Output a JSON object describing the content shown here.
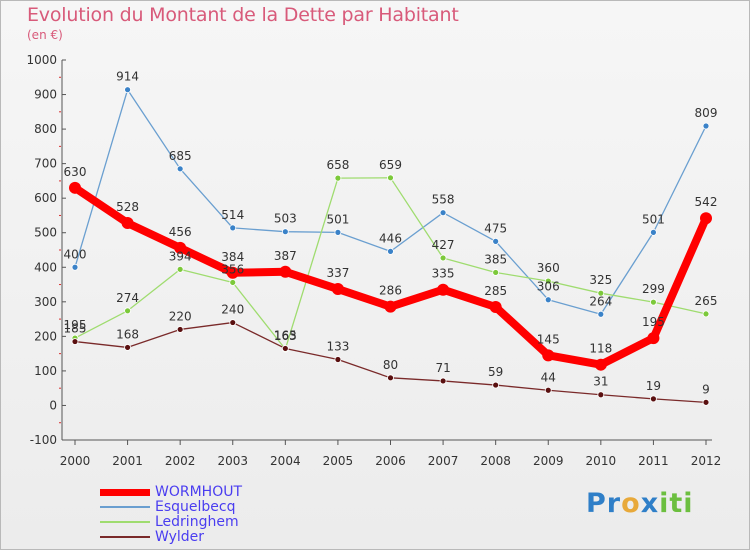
{
  "header": {
    "title": "Evolution du Montant de la Dette par Habitant",
    "subtitle": "(en €)"
  },
  "brand": {
    "text": "Proxiti",
    "letters": [
      {
        "ch": "P",
        "color": "#2f7fc8"
      },
      {
        "ch": "r",
        "color": "#2f7fc8"
      },
      {
        "ch": "o",
        "color": "#e8a93a"
      },
      {
        "ch": "x",
        "color": "#2f7fc8"
      },
      {
        "ch": "i",
        "color": "#6cbf3f"
      },
      {
        "ch": "t",
        "color": "#6cbf3f"
      },
      {
        "ch": "i",
        "color": "#6cbf3f"
      }
    ]
  },
  "chart_data": {
    "type": "line",
    "title": "Evolution du Montant de la Dette par Habitant",
    "subtitle": "(en €)",
    "x": [
      "2000",
      "2001",
      "2002",
      "2003",
      "2004",
      "2005",
      "2006",
      "2007",
      "2008",
      "2009",
      "2010",
      "2011",
      "2012"
    ],
    "yticks": [
      1000,
      900,
      800,
      700,
      600,
      500,
      400,
      300,
      200,
      100,
      0,
      -100
    ],
    "ylim": [
      -100,
      1000
    ],
    "grid": false,
    "legend_position": "bottom-left",
    "series": [
      {
        "name": "WORMHOUT",
        "color": "#ff0000",
        "point_color": "#ff0000",
        "emphasis": true,
        "values": [
          630,
          528,
          456,
          384,
          387,
          337,
          286,
          335,
          285,
          145,
          118,
          195,
          542
        ],
        "labels": [
          "630",
          "528",
          "456",
          "384",
          "387",
          "337",
          "286",
          "335",
          "285",
          "145",
          "118",
          "195",
          "542"
        ]
      },
      {
        "name": "Esquelbecq",
        "color": "#6a9fd0",
        "point_color": "#3a82c8",
        "emphasis": false,
        "values": [
          400,
          914,
          685,
          514,
          503,
          501,
          446,
          558,
          475,
          306,
          264,
          501,
          809
        ],
        "labels": [
          "400",
          "914",
          "685",
          "514",
          "503",
          "501",
          "446",
          "558",
          "475",
          "306",
          "264",
          "501",
          "809"
        ]
      },
      {
        "name": "Ledringhem",
        "color": "#9fdc6f",
        "point_color": "#7cc93a",
        "emphasis": false,
        "values": [
          195,
          274,
          394,
          356,
          163,
          658,
          659,
          427,
          385,
          360,
          325,
          299,
          265
        ],
        "labels": [
          "195",
          "274",
          "394",
          "356",
          "163",
          "658",
          "659",
          "427",
          "385",
          "360",
          "325",
          "299",
          "265"
        ]
      },
      {
        "name": "Wylder",
        "color": "#7a2a2a",
        "point_color": "#5a1010",
        "emphasis": false,
        "values": [
          185,
          168,
          220,
          240,
          165,
          133,
          80,
          71,
          59,
          44,
          31,
          19,
          9
        ],
        "labels": [
          "185",
          "168",
          "220",
          "240",
          "165",
          "133",
          "80",
          "71",
          "59",
          "44",
          "31",
          "19",
          "9"
        ]
      }
    ]
  }
}
